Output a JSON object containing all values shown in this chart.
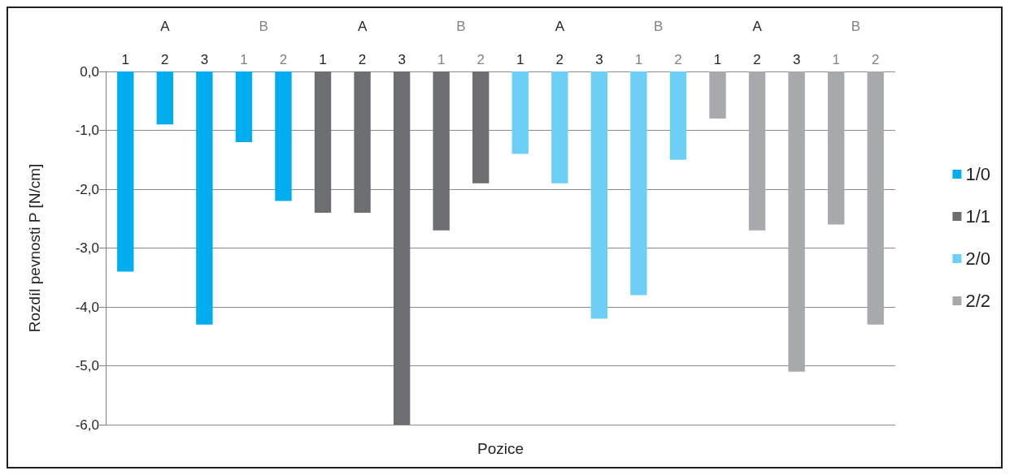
{
  "chart_data": {
    "type": "bar",
    "xlabel": "Pozice",
    "ylabel": "Rozdíl pevnosti P [N/cm]",
    "categories": [
      "1",
      "2",
      "3",
      "1",
      "2",
      "1",
      "2",
      "3",
      "1",
      "2",
      "1",
      "2",
      "3",
      "1",
      "2",
      "1",
      "2",
      "3",
      "1",
      "2"
    ],
    "annotations": [
      "A",
      "B",
      "A",
      "B",
      "A",
      "B",
      "A",
      "B"
    ],
    "series": [
      {
        "name": "1/0",
        "color": "#00adef",
        "values": [
          -3.4,
          -0.9,
          -4.3,
          -1.2,
          -2.2,
          null,
          null,
          null,
          null,
          null,
          null,
          null,
          null,
          null,
          null,
          null,
          null,
          null,
          null,
          null
        ]
      },
      {
        "name": "1/1",
        "color": "#6d6e71",
        "values": [
          null,
          null,
          null,
          null,
          null,
          -2.4,
          -2.4,
          -6.0,
          -2.7,
          -1.9,
          null,
          null,
          null,
          null,
          null,
          null,
          null,
          null,
          null,
          null
        ]
      },
      {
        "name": "2/0",
        "color": "#6dcff6",
        "values": [
          null,
          null,
          null,
          null,
          null,
          null,
          null,
          null,
          null,
          null,
          -1.4,
          -1.9,
          -4.2,
          -3.8,
          -1.5,
          null,
          null,
          null,
          null,
          null
        ]
      },
      {
        "name": "2/2",
        "color": "#a7a9ac",
        "values": [
          null,
          null,
          null,
          null,
          null,
          null,
          null,
          null,
          null,
          null,
          null,
          null,
          null,
          null,
          null,
          -0.8,
          -2.7,
          -5.1,
          -2.6,
          -4.3
        ]
      }
    ],
    "ylim": [
      -6,
      0
    ],
    "yticks": [
      {
        "value": 0,
        "label": "0,0"
      },
      {
        "value": -1,
        "label": "-1,0"
      },
      {
        "value": -2,
        "label": "-2,0"
      },
      {
        "value": -3,
        "label": "-3,0"
      },
      {
        "value": -4,
        "label": "-4,0"
      },
      {
        "value": -5,
        "label": "-5,0"
      },
      {
        "value": -6,
        "label": "-6,0"
      }
    ],
    "grid": "y",
    "legend": "right"
  }
}
